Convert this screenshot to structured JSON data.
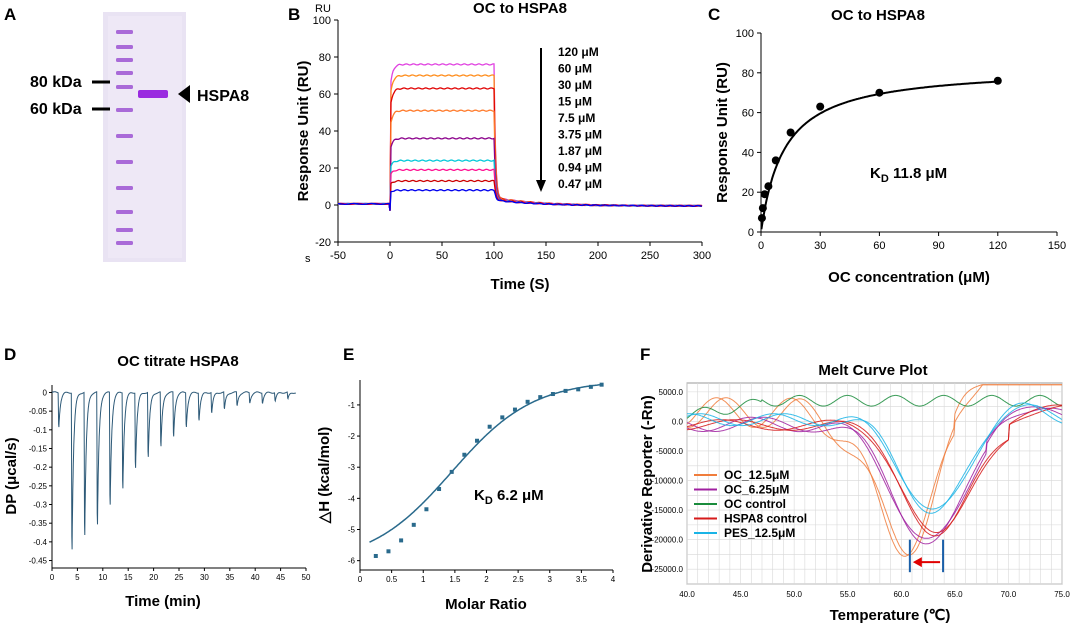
{
  "panels": {
    "A": {
      "label": "A",
      "markers": [
        "80 kDa",
        "60 kDa"
      ],
      "band_label": "HSPA8"
    },
    "B": {
      "label": "B",
      "unit_label": "RU",
      "time_unit_label": "s",
      "arrow_labels": [
        "120 μM",
        "60 μM",
        "30 μM",
        "15 μM",
        "7.5 μM",
        "3.75 μM",
        "1.87 μM",
        "0.94 μM",
        "0.47 μM"
      ]
    },
    "C": {
      "label": "C",
      "kd_text": "K",
      "kd_sub": "D",
      "kd_value": " 11.8 μM"
    },
    "D": {
      "label": "D"
    },
    "E": {
      "label": "E",
      "kd_text": "K",
      "kd_sub": "D",
      "kd_value": " 6.2 μM"
    },
    "F": {
      "label": "F"
    }
  },
  "chart_data": [
    {
      "id": "B",
      "type": "line",
      "title": "OC to HSPA8",
      "xlabel": "Time (S)",
      "ylabel": "Response Unit (RU)",
      "xlim": [
        -50,
        300
      ],
      "ylim": [
        -20,
        100
      ],
      "xticks": [
        -50,
        0,
        50,
        100,
        150,
        200,
        250,
        300
      ],
      "yticks": [
        -20,
        0,
        20,
        40,
        60,
        80,
        100
      ],
      "series": [
        {
          "name": "120 μM",
          "plateau": 76,
          "color": "#e040e0"
        },
        {
          "name": "60 μM",
          "plateau": 70,
          "color": "#ff8c1a"
        },
        {
          "name": "30 μM",
          "plateau": 63,
          "color": "#e00000"
        },
        {
          "name": "15 μM",
          "plateau": 51,
          "color": "#ff7a2a"
        },
        {
          "name": "7.5 μM",
          "plateau": 36,
          "color": "#8b008b"
        },
        {
          "name": "3.75 μM",
          "plateau": 24,
          "color": "#00c8d8"
        },
        {
          "name": "1.87 μM",
          "plateau": 19,
          "color": "#ff1493"
        },
        {
          "name": "0.94 μM",
          "plateau": 13,
          "color": "#cc0000"
        },
        {
          "name": "0.47 μM",
          "plateau": 8,
          "color": "#0000ee"
        }
      ]
    },
    {
      "id": "C",
      "type": "scatter",
      "title": "OC to HSPA8",
      "xlabel": "OC concentration (μM)",
      "ylabel": "Response Unit (RU)",
      "xlim": [
        0,
        150
      ],
      "ylim": [
        0,
        100
      ],
      "xticks": [
        0,
        30,
        60,
        90,
        120,
        150
      ],
      "yticks": [
        0,
        20,
        40,
        60,
        80,
        100
      ],
      "points": {
        "x": [
          0.47,
          0.94,
          1.87,
          3.75,
          7.5,
          15,
          30,
          60,
          120
        ],
        "y": [
          7,
          12,
          19,
          23,
          36,
          50,
          63,
          70,
          76
        ]
      },
      "fit": {
        "model": "Rmax*x/(KD+x)",
        "Rmax": 83,
        "KD": 11.8
      }
    },
    {
      "id": "D",
      "type": "line",
      "title": "OC titrate HSPA8",
      "xlabel": "Time (min)",
      "ylabel": "DP (μcal/s)",
      "xlim": [
        0,
        50
      ],
      "ylim": [
        -0.47,
        0.02
      ],
      "xticks": [
        0,
        5,
        10,
        15,
        20,
        25,
        30,
        35,
        40,
        45,
        50
      ],
      "yticks": [
        0,
        -0.05,
        -0.1,
        -0.15,
        -0.2,
        -0.25,
        -0.3,
        -0.35,
        -0.4,
        -0.45
      ],
      "injection_times": [
        1.2,
        3.8,
        6.3,
        8.8,
        11.3,
        13.8,
        16.3,
        18.8,
        21.3,
        23.8,
        26.3,
        28.8,
        31.3,
        33.8,
        36.3,
        38.8,
        41.3,
        43.8,
        46.3
      ],
      "injection_peaks": [
        -0.1,
        -0.46,
        -0.42,
        -0.39,
        -0.33,
        -0.28,
        -0.22,
        -0.19,
        -0.16,
        -0.13,
        -0.1,
        -0.08,
        -0.06,
        -0.05,
        -0.04,
        -0.03,
        -0.03,
        -0.025,
        -0.02
      ]
    },
    {
      "id": "E",
      "type": "scatter",
      "title": "",
      "xlabel": "Molar Ratio",
      "ylabel": "△H (kcal/mol)",
      "xlim": [
        0,
        4
      ],
      "ylim": [
        -6.3,
        -0.2
      ],
      "xticks": [
        0,
        0.5,
        1,
        1.5,
        2,
        2.5,
        3,
        3.5,
        4
      ],
      "yticks": [
        -1,
        -2,
        -3,
        -4,
        -5,
        -6
      ],
      "points": {
        "x": [
          0.25,
          0.45,
          0.65,
          0.85,
          1.05,
          1.25,
          1.45,
          1.65,
          1.85,
          2.05,
          2.25,
          2.45,
          2.65,
          2.85,
          3.05,
          3.25,
          3.45,
          3.65,
          3.82
        ],
        "y": [
          -5.85,
          -5.7,
          -5.35,
          -4.85,
          -4.35,
          -3.7,
          -3.15,
          -2.6,
          -2.15,
          -1.7,
          -1.4,
          -1.15,
          -0.9,
          -0.75,
          -0.65,
          -0.55,
          -0.5,
          -0.42,
          -0.35
        ]
      },
      "fit": {
        "model": "sigmoid",
        "bottom": -6.1,
        "top": -0.2,
        "x50": 1.45,
        "k": 1.55
      }
    },
    {
      "id": "F",
      "type": "line",
      "title": "Melt Curve Plot",
      "xlabel": "Temperature (℃)",
      "ylabel": "Derivative Reporter (-Rn)",
      "xlim": [
        40,
        75
      ],
      "ylim": [
        -27500,
        6500
      ],
      "xticks": [
        40,
        45,
        50,
        55,
        60,
        65,
        70,
        75
      ],
      "xtick_labels": [
        "40.0",
        "45.0",
        "50.0",
        "55.0",
        "60.0",
        "65.0",
        "70.0",
        "75.0"
      ],
      "yticks": [
        5000,
        0,
        -5000,
        -10000,
        -15000,
        -20000,
        -25000
      ],
      "ytick_labels": [
        "5000.0",
        "0.0",
        "-5000.0",
        "-10000.0",
        "-15000.0",
        "-20000.0",
        "-25000.0"
      ],
      "legend": [
        {
          "name": "OC_12.5μM",
          "color": "#f07d3c"
        },
        {
          "name": "OC_6.25μM",
          "color": "#a020a0"
        },
        {
          "name": "OC control",
          "color": "#1a8c3c"
        },
        {
          "name": "HSPA8 control",
          "color": "#d61a1a"
        },
        {
          "name": "PES_12.5μM",
          "color": "#1ab4e6"
        }
      ],
      "markers": [
        {
          "temp": 60.8,
          "label": "OC_12.5μM"
        },
        {
          "temp": 63.9,
          "label": "HSPA8 control"
        }
      ],
      "shift_arrow": {
        "from": 63.9,
        "to": 60.8,
        "color": "#e00000"
      }
    }
  ]
}
